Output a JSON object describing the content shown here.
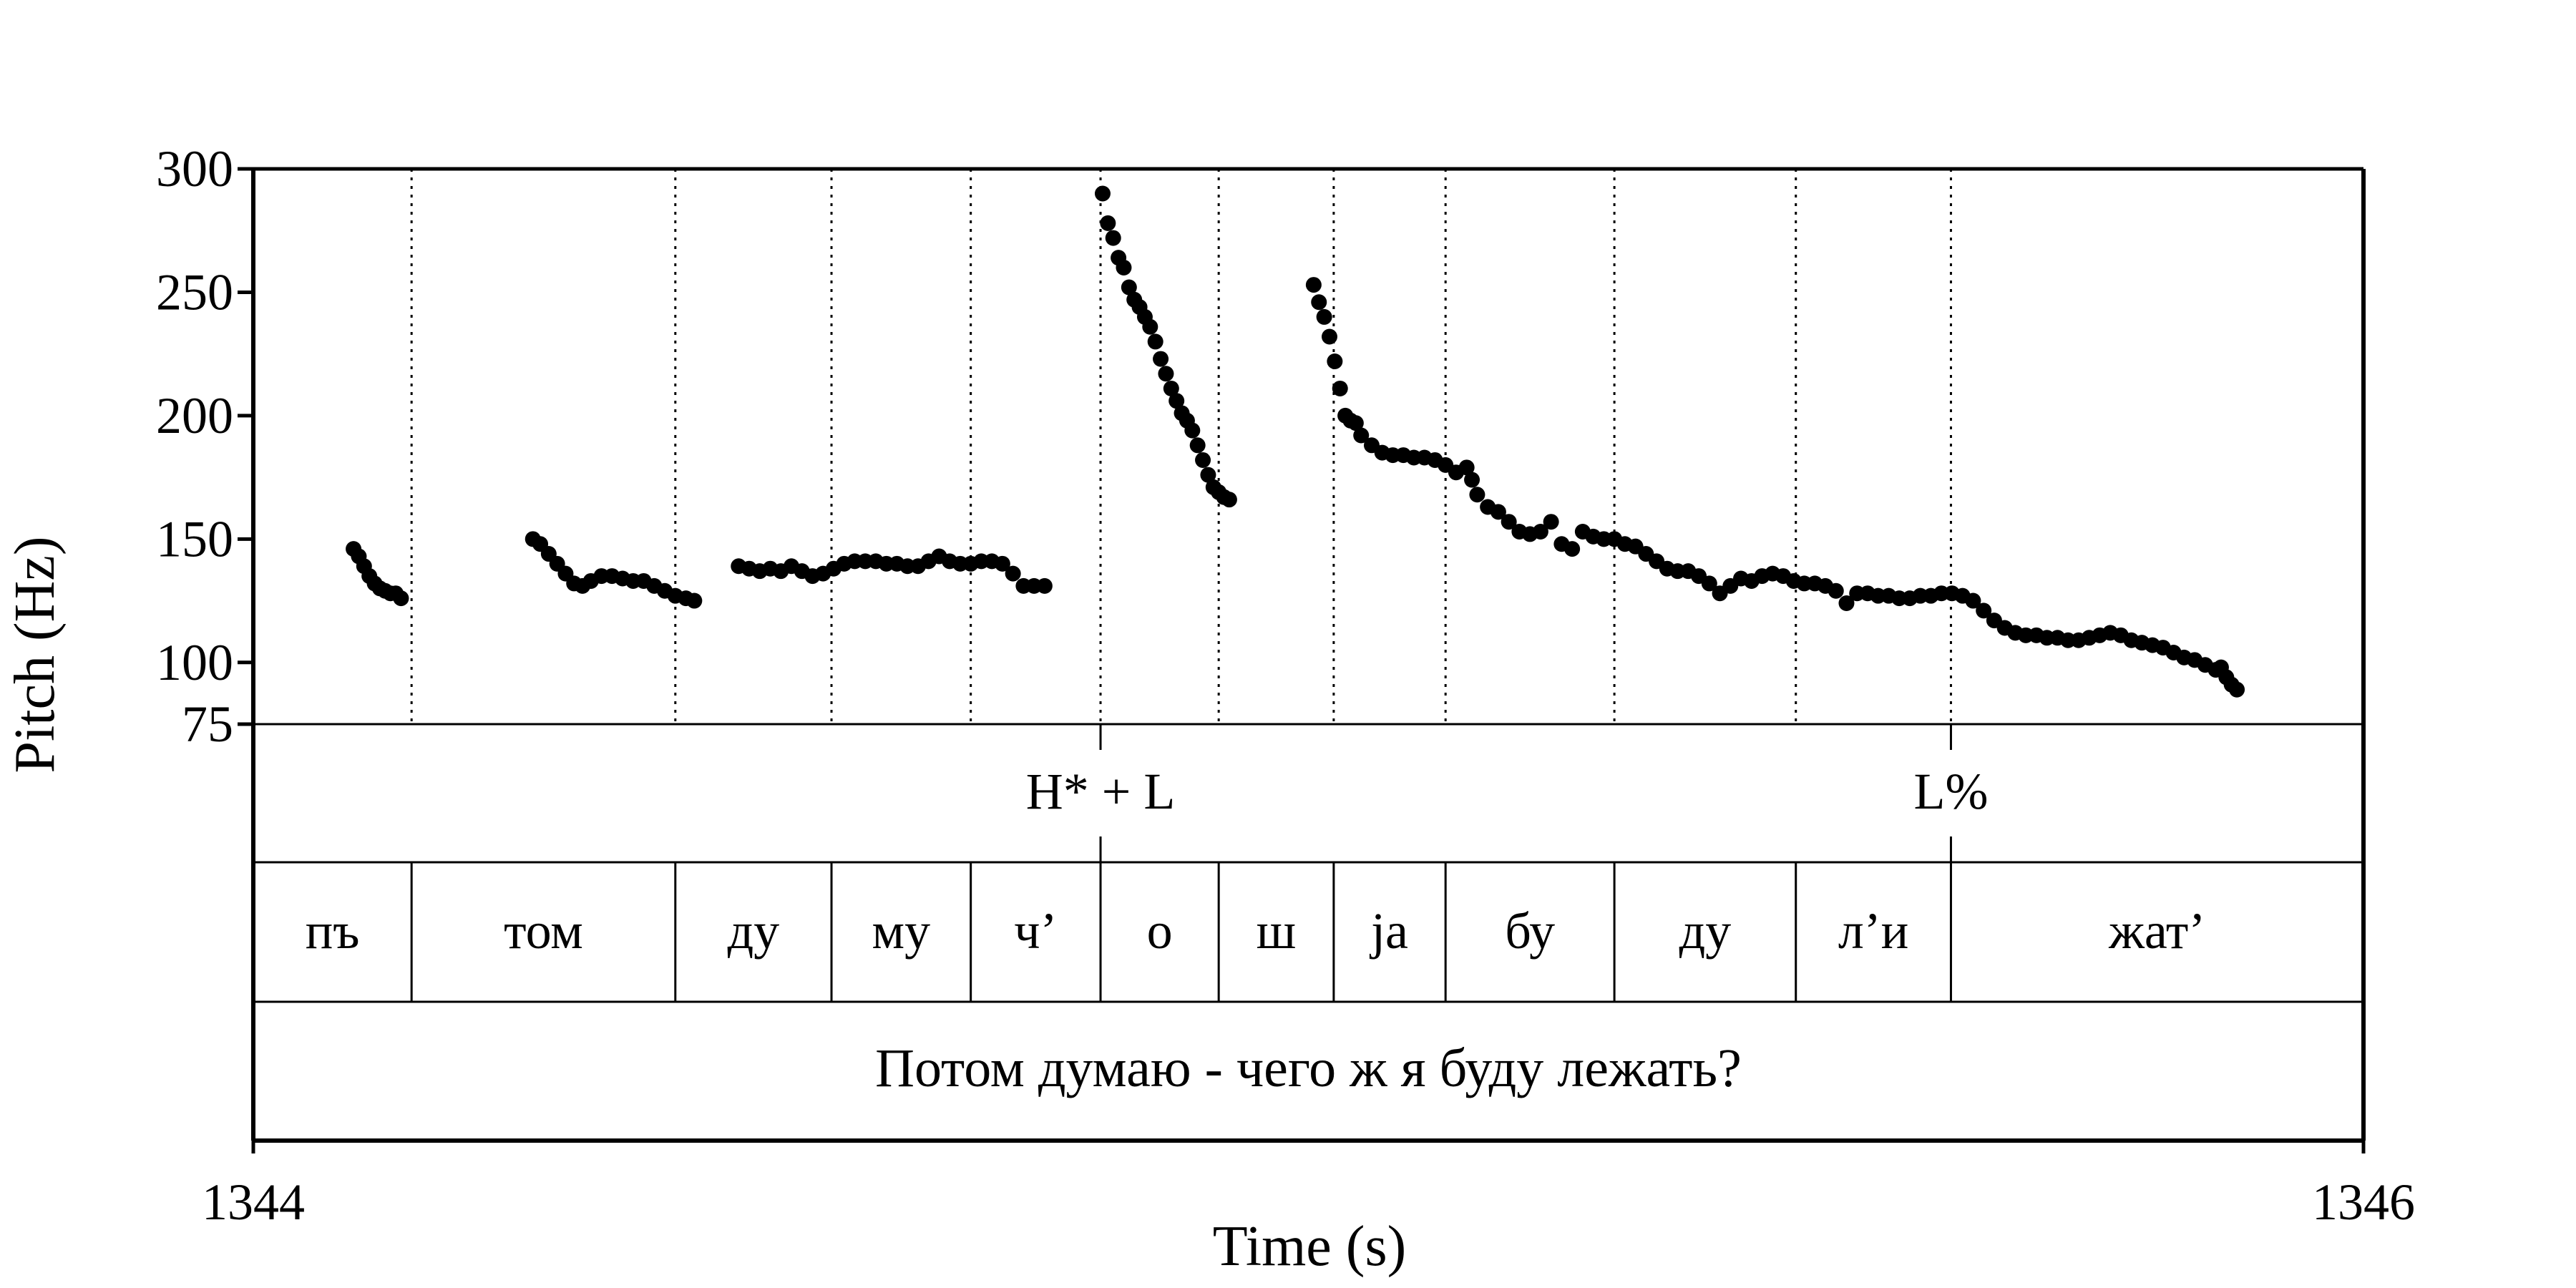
{
  "chart_data": {
    "type": "scatter",
    "xlabel": "Time (s)",
    "ylabel": "Pitch (Hz)",
    "xlim": [
      1344,
      1346
    ],
    "ylim": [
      75,
      300
    ],
    "x_ticks": [
      "1344",
      "1346"
    ],
    "y_ticks": [
      {
        "value": 300,
        "label": "300"
      },
      {
        "value": 250,
        "label": "250"
      },
      {
        "value": 200,
        "label": "200"
      },
      {
        "value": 150,
        "label": "150"
      },
      {
        "value": 100,
        "label": "100"
      },
      {
        "value": 75,
        "label": "75"
      }
    ],
    "grid": "dotted vertical lines at segment boundaries",
    "marker_color": "#000000",
    "pitch_segments": [
      {
        "points": [
          [
            1344.095,
            146
          ],
          [
            1344.1,
            143
          ],
          [
            1344.105,
            139
          ],
          [
            1344.11,
            135
          ],
          [
            1344.115,
            132
          ],
          [
            1344.12,
            130
          ],
          [
            1344.125,
            129
          ],
          [
            1344.13,
            128
          ],
          [
            1344.135,
            128
          ],
          [
            1344.14,
            126
          ]
        ]
      },
      {
        "points": [
          [
            1344.265,
            150
          ],
          [
            1344.272,
            148
          ],
          [
            1344.28,
            144
          ],
          [
            1344.288,
            140
          ],
          [
            1344.296,
            136
          ],
          [
            1344.304,
            132
          ],
          [
            1344.312,
            131
          ],
          [
            1344.32,
            133
          ],
          [
            1344.33,
            135
          ],
          [
            1344.34,
            135
          ],
          [
            1344.35,
            134
          ],
          [
            1344.36,
            133
          ],
          [
            1344.37,
            133
          ],
          [
            1344.38,
            131
          ],
          [
            1344.39,
            129
          ],
          [
            1344.4,
            127
          ],
          [
            1344.41,
            126
          ],
          [
            1344.418,
            125
          ]
        ]
      },
      {
        "points": [
          [
            1344.46,
            139
          ],
          [
            1344.47,
            138
          ],
          [
            1344.48,
            137
          ],
          [
            1344.49,
            138
          ],
          [
            1344.5,
            137
          ],
          [
            1344.51,
            139
          ],
          [
            1344.52,
            137
          ],
          [
            1344.53,
            135
          ],
          [
            1344.54,
            136
          ],
          [
            1344.55,
            138
          ],
          [
            1344.56,
            140
          ],
          [
            1344.57,
            141
          ],
          [
            1344.58,
            141
          ],
          [
            1344.59,
            141
          ],
          [
            1344.6,
            140
          ],
          [
            1344.61,
            140
          ],
          [
            1344.62,
            139
          ],
          [
            1344.63,
            139
          ],
          [
            1344.64,
            141
          ],
          [
            1344.65,
            143
          ],
          [
            1344.66,
            141
          ],
          [
            1344.67,
            140
          ],
          [
            1344.68,
            140
          ],
          [
            1344.69,
            141
          ],
          [
            1344.7,
            141
          ],
          [
            1344.71,
            140
          ],
          [
            1344.72,
            136
          ],
          [
            1344.73,
            131
          ],
          [
            1344.74,
            131
          ],
          [
            1344.75,
            131
          ]
        ]
      },
      {
        "points": [
          [
            1344.805,
            290
          ],
          [
            1344.81,
            278
          ],
          [
            1344.815,
            272
          ],
          [
            1344.82,
            264
          ],
          [
            1344.825,
            260
          ],
          [
            1344.83,
            252
          ],
          [
            1344.835,
            247
          ],
          [
            1344.84,
            244
          ],
          [
            1344.845,
            240
          ],
          [
            1344.85,
            236
          ],
          [
            1344.855,
            230
          ],
          [
            1344.86,
            223
          ],
          [
            1344.865,
            217
          ],
          [
            1344.87,
            211
          ],
          [
            1344.875,
            206
          ],
          [
            1344.88,
            201
          ],
          [
            1344.885,
            198
          ],
          [
            1344.89,
            194
          ],
          [
            1344.895,
            188
          ],
          [
            1344.9,
            182
          ],
          [
            1344.905,
            176
          ],
          [
            1344.91,
            171
          ],
          [
            1344.915,
            169
          ],
          [
            1344.92,
            167
          ],
          [
            1344.925,
            166
          ]
        ]
      },
      {
        "points": [
          [
            1345.005,
            253
          ],
          [
            1345.01,
            246
          ],
          [
            1345.015,
            240
          ],
          [
            1345.02,
            232
          ],
          [
            1345.025,
            222
          ],
          [
            1345.03,
            211
          ],
          [
            1345.035,
            200
          ],
          [
            1345.04,
            198
          ],
          [
            1345.045,
            197
          ],
          [
            1345.05,
            192
          ],
          [
            1345.06,
            188
          ],
          [
            1345.07,
            185
          ],
          [
            1345.08,
            184
          ],
          [
            1345.09,
            184
          ],
          [
            1345.1,
            183
          ],
          [
            1345.11,
            183
          ],
          [
            1345.12,
            182
          ],
          [
            1345.13,
            180
          ],
          [
            1345.14,
            177
          ],
          [
            1345.15,
            179
          ],
          [
            1345.155,
            174
          ],
          [
            1345.16,
            168
          ],
          [
            1345.17,
            163
          ],
          [
            1345.18,
            161
          ],
          [
            1345.19,
            157
          ],
          [
            1345.2,
            153
          ],
          [
            1345.21,
            152
          ],
          [
            1345.22,
            153
          ],
          [
            1345.23,
            157
          ],
          [
            1345.24,
            148
          ],
          [
            1345.25,
            146
          ],
          [
            1345.26,
            153
          ],
          [
            1345.27,
            151
          ],
          [
            1345.28,
            150
          ],
          [
            1345.29,
            150
          ],
          [
            1345.3,
            148
          ],
          [
            1345.31,
            147
          ],
          [
            1345.32,
            144
          ],
          [
            1345.33,
            141
          ],
          [
            1345.34,
            138
          ],
          [
            1345.35,
            137
          ],
          [
            1345.36,
            137
          ],
          [
            1345.37,
            135
          ],
          [
            1345.38,
            132
          ],
          [
            1345.39,
            128
          ],
          [
            1345.4,
            131
          ],
          [
            1345.41,
            134
          ],
          [
            1345.42,
            133
          ],
          [
            1345.43,
            135
          ],
          [
            1345.44,
            136
          ],
          [
            1345.45,
            135
          ],
          [
            1345.46,
            133
          ],
          [
            1345.47,
            132
          ],
          [
            1345.48,
            132
          ],
          [
            1345.49,
            131
          ],
          [
            1345.5,
            129
          ],
          [
            1345.51,
            124
          ],
          [
            1345.52,
            128
          ],
          [
            1345.53,
            128
          ],
          [
            1345.54,
            127
          ],
          [
            1345.55,
            127
          ],
          [
            1345.56,
            126
          ],
          [
            1345.57,
            126
          ],
          [
            1345.58,
            127
          ],
          [
            1345.59,
            127
          ],
          [
            1345.6,
            128
          ],
          [
            1345.61,
            128
          ],
          [
            1345.62,
            127
          ],
          [
            1345.63,
            125
          ],
          [
            1345.64,
            121
          ],
          [
            1345.65,
            117
          ],
          [
            1345.66,
            114
          ],
          [
            1345.67,
            112
          ],
          [
            1345.68,
            111
          ],
          [
            1345.69,
            111
          ],
          [
            1345.7,
            110
          ],
          [
            1345.71,
            110
          ],
          [
            1345.72,
            109
          ],
          [
            1345.73,
            109
          ],
          [
            1345.74,
            110
          ],
          [
            1345.75,
            111
          ],
          [
            1345.76,
            112
          ],
          [
            1345.77,
            111
          ],
          [
            1345.78,
            109
          ],
          [
            1345.79,
            108
          ],
          [
            1345.8,
            107
          ],
          [
            1345.81,
            106
          ],
          [
            1345.82,
            104
          ],
          [
            1345.83,
            102
          ],
          [
            1345.84,
            101
          ],
          [
            1345.85,
            99
          ],
          [
            1345.86,
            97
          ],
          [
            1345.865,
            98
          ],
          [
            1345.87,
            94
          ],
          [
            1345.875,
            91
          ],
          [
            1345.88,
            89
          ]
        ]
      }
    ],
    "boundaries": [
      1344.15,
      1344.4,
      1344.548,
      1344.68,
      1344.803,
      1344.915,
      1345.024,
      1345.13,
      1345.29,
      1345.462,
      1345.609
    ],
    "tones": [
      {
        "label": "H* + L",
        "time": 1344.803
      },
      {
        "label": "L%",
        "time": 1345.609
      }
    ],
    "syllables": [
      {
        "label": "пъ",
        "start": 1344.0,
        "end": 1344.15
      },
      {
        "label": "том",
        "start": 1344.15,
        "end": 1344.4
      },
      {
        "label": "ду",
        "start": 1344.4,
        "end": 1344.548
      },
      {
        "label": "му",
        "start": 1344.548,
        "end": 1344.68
      },
      {
        "label": "ч’",
        "start": 1344.68,
        "end": 1344.803
      },
      {
        "label": "о",
        "start": 1344.803,
        "end": 1344.915
      },
      {
        "label": "ш",
        "start": 1344.915,
        "end": 1345.024
      },
      {
        "label": "jа",
        "start": 1345.024,
        "end": 1345.13
      },
      {
        "label": "бу",
        "start": 1345.13,
        "end": 1345.29
      },
      {
        "label": "ду",
        "start": 1345.29,
        "end": 1345.462
      },
      {
        "label": "л’и",
        "start": 1345.462,
        "end": 1345.609
      },
      {
        "label": "жат’",
        "start": 1345.609,
        "end": 1346.0
      }
    ],
    "sentence": "Потом думаю - чего ж я буду лежать?"
  }
}
